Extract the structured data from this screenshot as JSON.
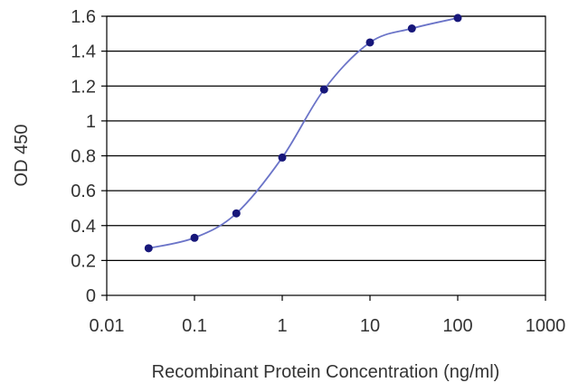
{
  "chart_data": {
    "type": "line",
    "xscale": "log",
    "xlabel": "Recombinant Protein Concentration (ng/ml)",
    "ylabel": "OD 450",
    "xlim": [
      0.01,
      1000
    ],
    "ylim": [
      0,
      1.6
    ],
    "grid": "horizontal",
    "legend": "none",
    "x_ticks": [
      "0.01",
      "0.1",
      "1",
      "10",
      "100",
      "1000"
    ],
    "y_ticks": [
      "0",
      "0.2",
      "0.4",
      "0.6",
      "0.8",
      "1",
      "1.2",
      "1.4",
      "1.6"
    ],
    "series": [
      {
        "x": [
          0.03,
          0.1,
          0.3,
          1,
          3,
          10,
          30,
          100
        ],
        "y": [
          0.27,
          0.33,
          0.47,
          0.79,
          1.18,
          1.45,
          1.53,
          1.59
        ]
      }
    ],
    "colors": {
      "line": "#6b74c8",
      "marker": "#17177a",
      "grid": "#000000",
      "axes": "#000000"
    }
  }
}
